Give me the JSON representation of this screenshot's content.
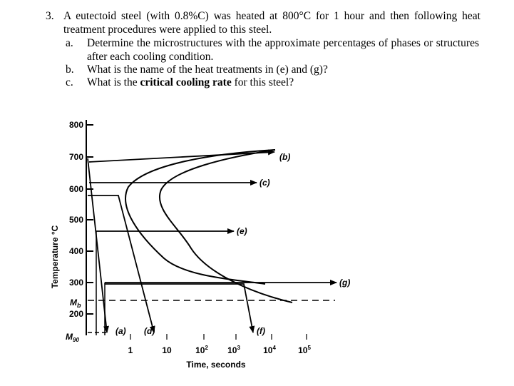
{
  "question": {
    "number": "3.",
    "text": "A eutectoid steel (with 0.8%C) was heated at 800°C for 1 hour and then following heat treatment procedures were applied to this steel.",
    "parts": [
      {
        "letter": "a.",
        "text": "Determine the microstructures with the approximate percentages of phases or structures after each cooling condition."
      },
      {
        "letter": "b.",
        "text": "What is the name of the heat treatments in (e) and (g)?"
      },
      {
        "letter": "c.",
        "text_before": "What is the ",
        "text_bold": "critical cooling rate",
        "text_after": " for this steel?"
      }
    ]
  },
  "diagram": {
    "ylabel": "Temperature °C",
    "xlabel": "Time, seconds",
    "y_ticks": [
      "800",
      "700",
      "600",
      "500",
      "400",
      "300",
      "200"
    ],
    "mb_label": "M",
    "mb_sub": "b",
    "m90_label": "M",
    "m90_sub": "90",
    "x_ticks": [
      {
        "base": "1",
        "exp": ""
      },
      {
        "base": "10",
        "exp": ""
      },
      {
        "base": "10",
        "exp": "2"
      },
      {
        "base": "10",
        "exp": "3"
      },
      {
        "base": "10",
        "exp": "4"
      },
      {
        "base": "10",
        "exp": "5"
      }
    ],
    "path_labels": [
      "(a)",
      "(b)",
      "(c)",
      "(d)",
      "(e)",
      "(f)",
      "(g)"
    ]
  }
}
